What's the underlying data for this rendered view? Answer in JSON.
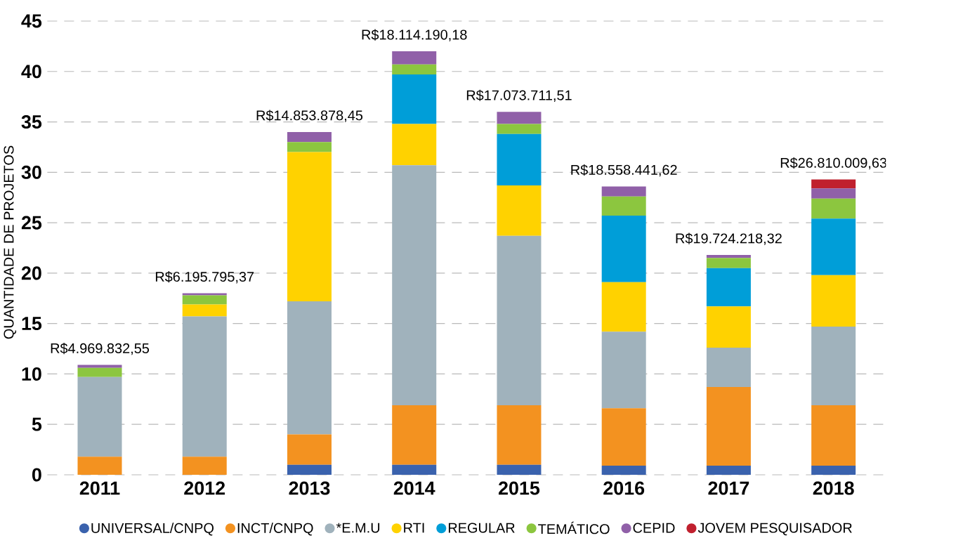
{
  "chart_data": {
    "type": "bar",
    "stacked": true,
    "ylabel": "QUANTIDADE DE PROJETOS",
    "categories": [
      "2011",
      "2012",
      "2013",
      "2014",
      "2015",
      "2016",
      "2017",
      "2018"
    ],
    "series": [
      {
        "name": "UNIVERSAL/CNPQ",
        "color": "#3a62ad",
        "values": [
          0,
          0,
          1.0,
          1.0,
          1.0,
          0.9,
          0.9,
          0.9
        ]
      },
      {
        "name": "INCT/CNPQ",
        "color": "#f39220",
        "values": [
          1.8,
          1.8,
          3.0,
          5.9,
          5.9,
          5.7,
          7.8,
          6.0
        ]
      },
      {
        "name": "*E.M.U",
        "color": "#a0b2bc",
        "values": [
          7.9,
          13.9,
          13.2,
          23.8,
          16.8,
          7.6,
          3.9,
          7.8
        ]
      },
      {
        "name": "RTI",
        "color": "#ffd200",
        "values": [
          0,
          1.2,
          14.8,
          4.1,
          5.0,
          4.9,
          4.1,
          5.1
        ]
      },
      {
        "name": "REGULAR",
        "color": "#009ed8",
        "values": [
          0,
          0,
          0,
          4.9,
          5.1,
          6.6,
          3.8,
          5.6
        ]
      },
      {
        "name": "TEMÁTICO",
        "color": "#8cc63f",
        "values": [
          0.9,
          0.9,
          1.0,
          1.0,
          1.0,
          1.9,
          1.0,
          2.0
        ]
      },
      {
        "name": "CEPID",
        "color": "#9060a8",
        "values": [
          0.3,
          0.2,
          1.0,
          1.3,
          1.2,
          1.0,
          0.3,
          1.0
        ]
      },
      {
        "name": "JOVEM PESQUISADOR",
        "color": "#c0202e",
        "values": [
          0,
          0,
          0,
          0,
          0,
          0,
          0,
          0.9
        ]
      }
    ],
    "totals": [
      "R$4.969.832,55",
      "R$6.195.795,37",
      "R$14.853.878,45",
      "R$18.114.190,18",
      "R$17.073.711,51",
      "R$18.558.441,62",
      "R$19.724.218,32",
      "R$26.810.009,63"
    ],
    "ylim": [
      0,
      45
    ],
    "yticks": [
      0,
      5,
      10,
      15,
      20,
      25,
      30,
      35,
      40,
      45
    ],
    "grid": "y",
    "legend": "bottom"
  }
}
